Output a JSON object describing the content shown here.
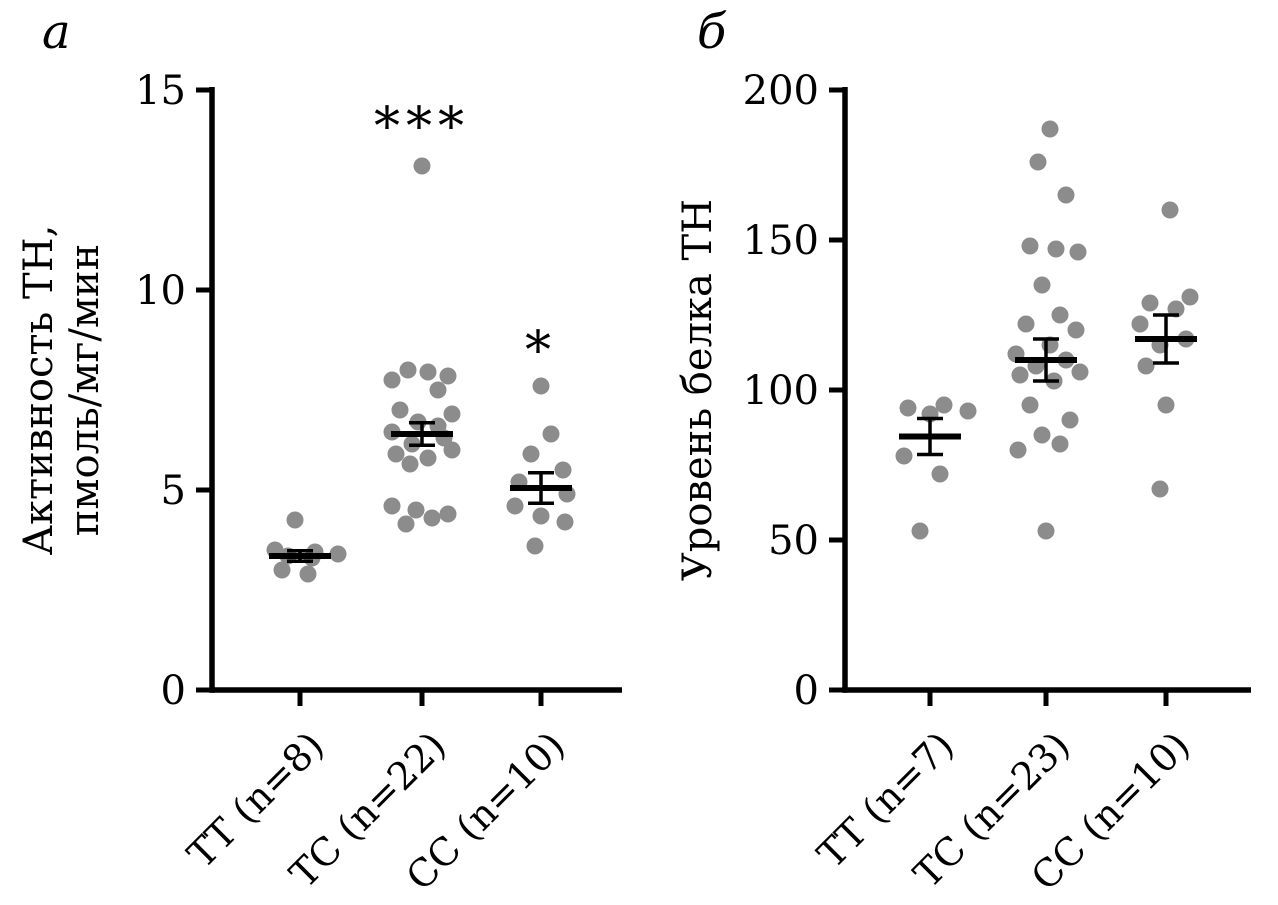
{
  "colors": {
    "background": "#ffffff",
    "dot": "#8c8c8c",
    "axis": "#000000",
    "text": "#000000"
  },
  "chart_data": [
    {
      "type": "scatter",
      "panel_letter": "а",
      "ylabel": "Активность ТН, пмоль/мг/мин",
      "ylabel_lines": [
        "Активность ТН,",
        "пмоль/мг/мин"
      ],
      "ylim": [
        0,
        15
      ],
      "yticks": [
        0,
        5,
        10,
        15
      ],
      "grid": false,
      "legend": "none",
      "groups": [
        {
          "label": "ТТ (n=8)",
          "n": 8,
          "values": [
            4.25,
            3.5,
            3.45,
            3.4,
            3.35,
            3.3,
            3.0,
            2.9
          ],
          "dx": [
            -5,
            -25,
            15,
            38,
            -12,
            12,
            -18,
            8
          ],
          "mean": 3.35,
          "sem": 0.13,
          "sig": null
        },
        {
          "label": "ТС (n=22)",
          "n": 22,
          "values": [
            13.1,
            8.0,
            7.95,
            7.85,
            7.75,
            7.5,
            7.0,
            6.9,
            6.7,
            6.6,
            6.45,
            6.3,
            6.15,
            6.0,
            5.9,
            5.8,
            5.65,
            4.6,
            4.5,
            4.4,
            4.3,
            4.15
          ],
          "dx": [
            0,
            -14,
            6,
            26,
            -30,
            16,
            -22,
            30,
            -4,
            16,
            -30,
            22,
            -10,
            30,
            -26,
            6,
            -12,
            -30,
            -6,
            26,
            10,
            -16
          ],
          "mean": 6.4,
          "sem": 0.28,
          "sig": {
            "text": "***",
            "at": 14.5
          }
        },
        {
          "label": "СС (n=10)",
          "n": 10,
          "values": [
            7.6,
            6.4,
            5.9,
            5.5,
            5.2,
            4.9,
            4.6,
            4.35,
            4.2,
            3.6
          ],
          "dx": [
            0,
            10,
            -10,
            22,
            -22,
            26,
            -26,
            0,
            24,
            -6
          ],
          "mean": 5.05,
          "sem": 0.38,
          "sig": {
            "text": "*",
            "at": 8.9
          }
        }
      ]
    },
    {
      "type": "scatter",
      "panel_letter": "б",
      "ylabel": "Уровень белка ТН",
      "ylabel_lines": [
        "Уровень белка ТН"
      ],
      "ylim": [
        0,
        200
      ],
      "yticks": [
        0,
        50,
        100,
        150,
        200
      ],
      "grid": false,
      "legend": "none",
      "groups": [
        {
          "label": "ТТ (n=7)",
          "n": 7,
          "values": [
            95,
            94,
            93,
            92,
            78,
            72,
            53
          ],
          "dx": [
            14,
            -22,
            38,
            0,
            -26,
            10,
            -10
          ],
          "mean": 84.5,
          "sem": 6,
          "sig": null
        },
        {
          "label": "ТС (n=23)",
          "n": 23,
          "values": [
            187,
            176,
            165,
            148,
            147,
            146,
            135,
            125,
            122,
            120,
            115,
            112,
            110,
            108,
            106,
            105,
            103,
            95,
            90,
            85,
            82,
            80,
            53
          ],
          "dx": [
            4,
            -8,
            20,
            -16,
            10,
            32,
            -4,
            14,
            -20,
            30,
            4,
            -30,
            20,
            -10,
            34,
            -26,
            8,
            -16,
            24,
            -4,
            14,
            -28,
            0
          ],
          "mean": 110,
          "sem": 7,
          "sig": null
        },
        {
          "label": "СС (n=10)",
          "n": 10,
          "values": [
            160,
            131,
            129,
            127,
            122,
            117,
            115,
            108,
            95,
            67
          ],
          "dx": [
            4,
            24,
            -16,
            10,
            -26,
            20,
            -6,
            -20,
            0,
            -6
          ],
          "mean": 117,
          "sem": 8,
          "sig": null
        }
      ]
    }
  ]
}
